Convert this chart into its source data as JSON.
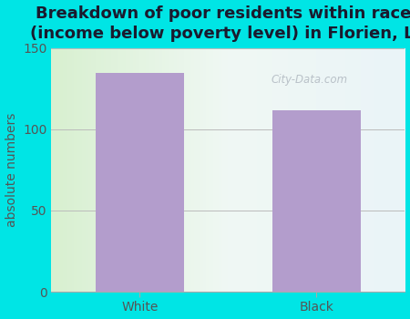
{
  "title": "Breakdown of poor residents within races\n(income below poverty level) in Florien, LA",
  "categories": [
    "White",
    "Black"
  ],
  "values": [
    135,
    112
  ],
  "bar_color": "#b39dcc",
  "ylabel": "absolute numbers",
  "ylim": [
    0,
    150
  ],
  "yticks": [
    0,
    50,
    100,
    150
  ],
  "bg_outer": "#00e5e5",
  "bg_gradient_left": "#d8f0d0",
  "bg_gradient_right": "#eaf4f8",
  "title_fontsize": 13,
  "title_color": "#1a1a2e",
  "label_fontsize": 10,
  "tick_fontsize": 10,
  "bar_width": 0.5,
  "grid_color": "#bbbbbb",
  "watermark": "City-Data.com",
  "ylabel_color": "#555555",
  "tick_color": "#555555"
}
